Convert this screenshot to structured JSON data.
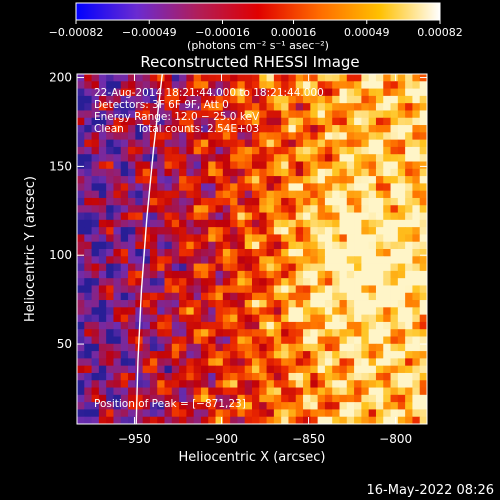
{
  "chart_data": {
    "type": "heatmap",
    "title": "Reconstructed RHESSI Image",
    "xlabel": "Heliocentric X (arcsec)",
    "ylabel": "Heliocentric Y (arcsec)",
    "xlim": [
      -983,
      -782
    ],
    "ylim": [
      5,
      202
    ],
    "x_ticks": [
      -950,
      -900,
      -850,
      -800
    ],
    "x_tick_labels": [
      "−950",
      "−900",
      "−850",
      "−800"
    ],
    "y_ticks": [
      50,
      100,
      150,
      200
    ],
    "y_tick_labels": [
      "50",
      "100",
      "150",
      "200"
    ],
    "colorbar": {
      "min": -0.00082,
      "max": 0.00082,
      "ticks": [
        -0.00082,
        -0.00049,
        -0.00016,
        0.00016,
        0.00049,
        0.00082
      ],
      "tick_labels": [
        "−0.00082",
        "−0.00049",
        "−0.00016",
        "0.00016",
        "0.00049",
        "0.00082"
      ],
      "unit_label": "(photons cm⁻² s⁻¹ asec⁻²)",
      "colors": [
        "#0000ff",
        "#6a2bd1",
        "#b01e5a",
        "#e00000",
        "#ff6a00",
        "#ffc000",
        "#ffffff"
      ]
    },
    "annotations": {
      "line1": "22‑Aug‑2014 18:21:44.000 to 18:21:44.000",
      "line2": "Detectors: 3F 6F 9F, Att 0",
      "line3": "Energy Range: 12.0 − 25.0 keV",
      "line4": "Clean    Total counts: 2.54E+03",
      "peak": "Position of Peak = [−871,23]"
    },
    "limb": {
      "points": [
        [
          -949,
          5
        ],
        [
          -948,
          40
        ],
        [
          -946,
          80
        ],
        [
          -943,
          120
        ],
        [
          -939,
          160
        ],
        [
          -934,
          202
        ]
      ]
    }
  },
  "footer": {
    "timestamp": "16‑May‑2022 08:26"
  }
}
